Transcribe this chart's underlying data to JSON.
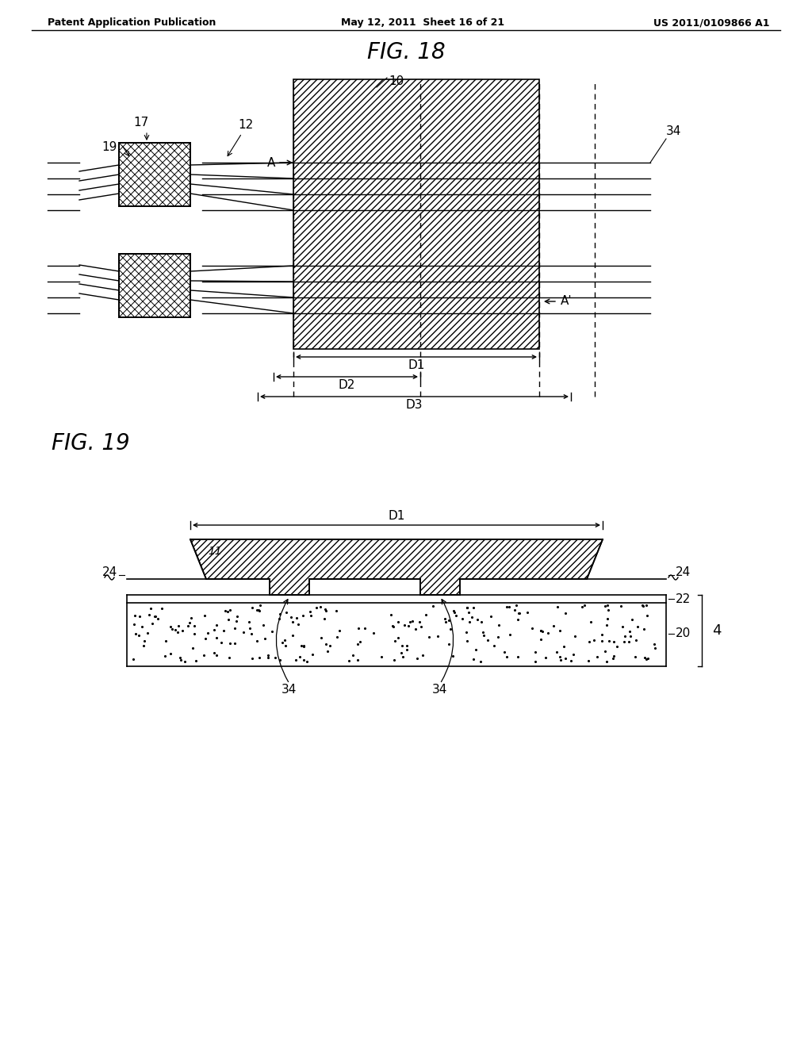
{
  "fig_title1": "FIG. 18",
  "fig_title2": "FIG. 19",
  "header_left": "Patent Application Publication",
  "header_mid": "May 12, 2011  Sheet 16 of 21",
  "header_right": "US 2011/0109866 A1",
  "bg_color": "#ffffff",
  "line_color": "#000000",
  "label_17": "17",
  "label_19": "19",
  "label_12": "12",
  "label_10": "10",
  "label_34": "34",
  "label_A": "A",
  "label_Aprime": "A'",
  "label_D1": "D1",
  "label_D2": "D2",
  "label_D3": "D3",
  "label_11": "11",
  "label_24": "24",
  "label_22": "22",
  "label_20": "20",
  "label_4": "4",
  "label_34b": "34"
}
